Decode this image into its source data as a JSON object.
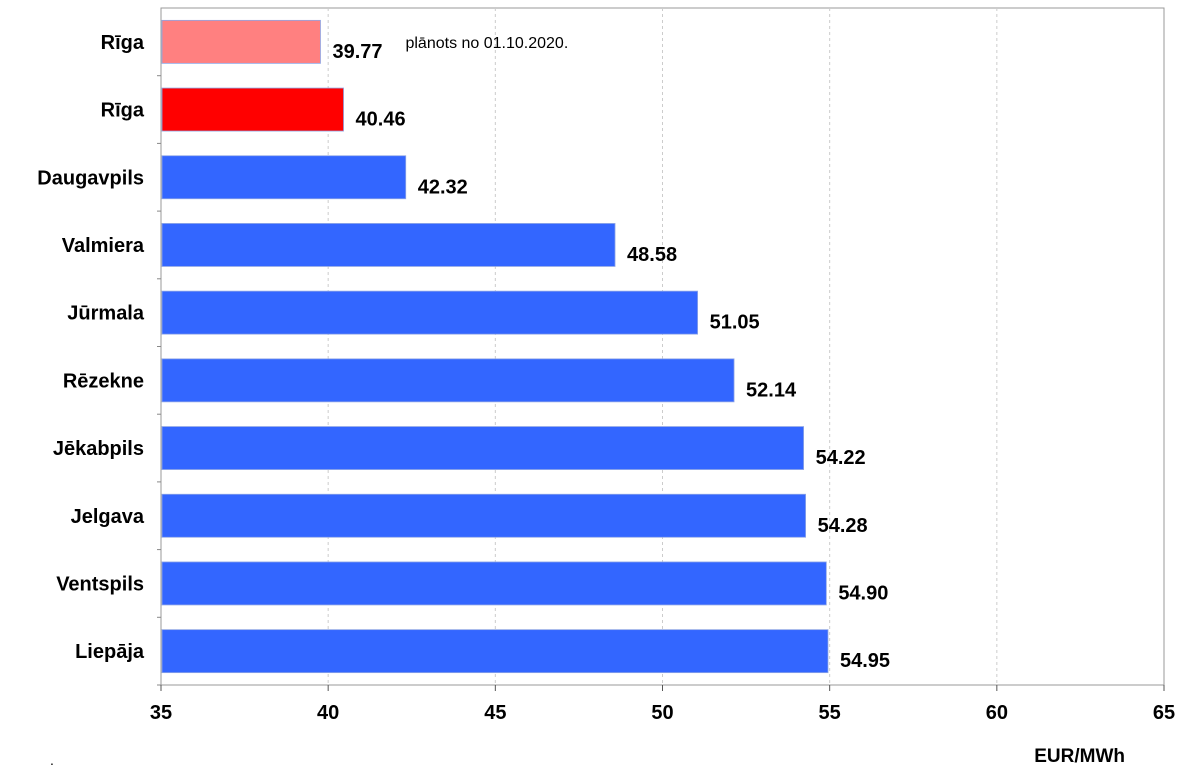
{
  "chart_data": {
    "type": "bar",
    "orientation": "horizontal",
    "categories": [
      "Rīga",
      "Rīga",
      "Daugavpils",
      "Valmiera",
      "Jūrmala",
      "Rēzekne",
      "Jēkabpils",
      "Jelgava",
      "Ventspils",
      "Liepāja"
    ],
    "values": [
      39.77,
      40.46,
      42.32,
      48.58,
      51.05,
      52.14,
      54.22,
      54.28,
      54.9,
      54.95
    ],
    "value_labels": [
      "39.77",
      "40.46",
      "42.32",
      "48.58",
      "51.05",
      "52.14",
      "54.22",
      "54.28",
      "54.90",
      "54.95"
    ],
    "bar_colors": [
      "#ff8080",
      "#ff0000",
      "#3366ff",
      "#3366ff",
      "#3366ff",
      "#3366ff",
      "#3366ff",
      "#3366ff",
      "#3366ff",
      "#3366ff"
    ],
    "xlim": [
      35,
      65
    ],
    "xticks": [
      35,
      40,
      45,
      50,
      55,
      60,
      65
    ],
    "xlabel": "EUR/MWh",
    "grid": "vertical dashed",
    "annotation": {
      "category_index": 0,
      "text": "plānots no 01.10.2020."
    }
  },
  "footer_mark": "."
}
